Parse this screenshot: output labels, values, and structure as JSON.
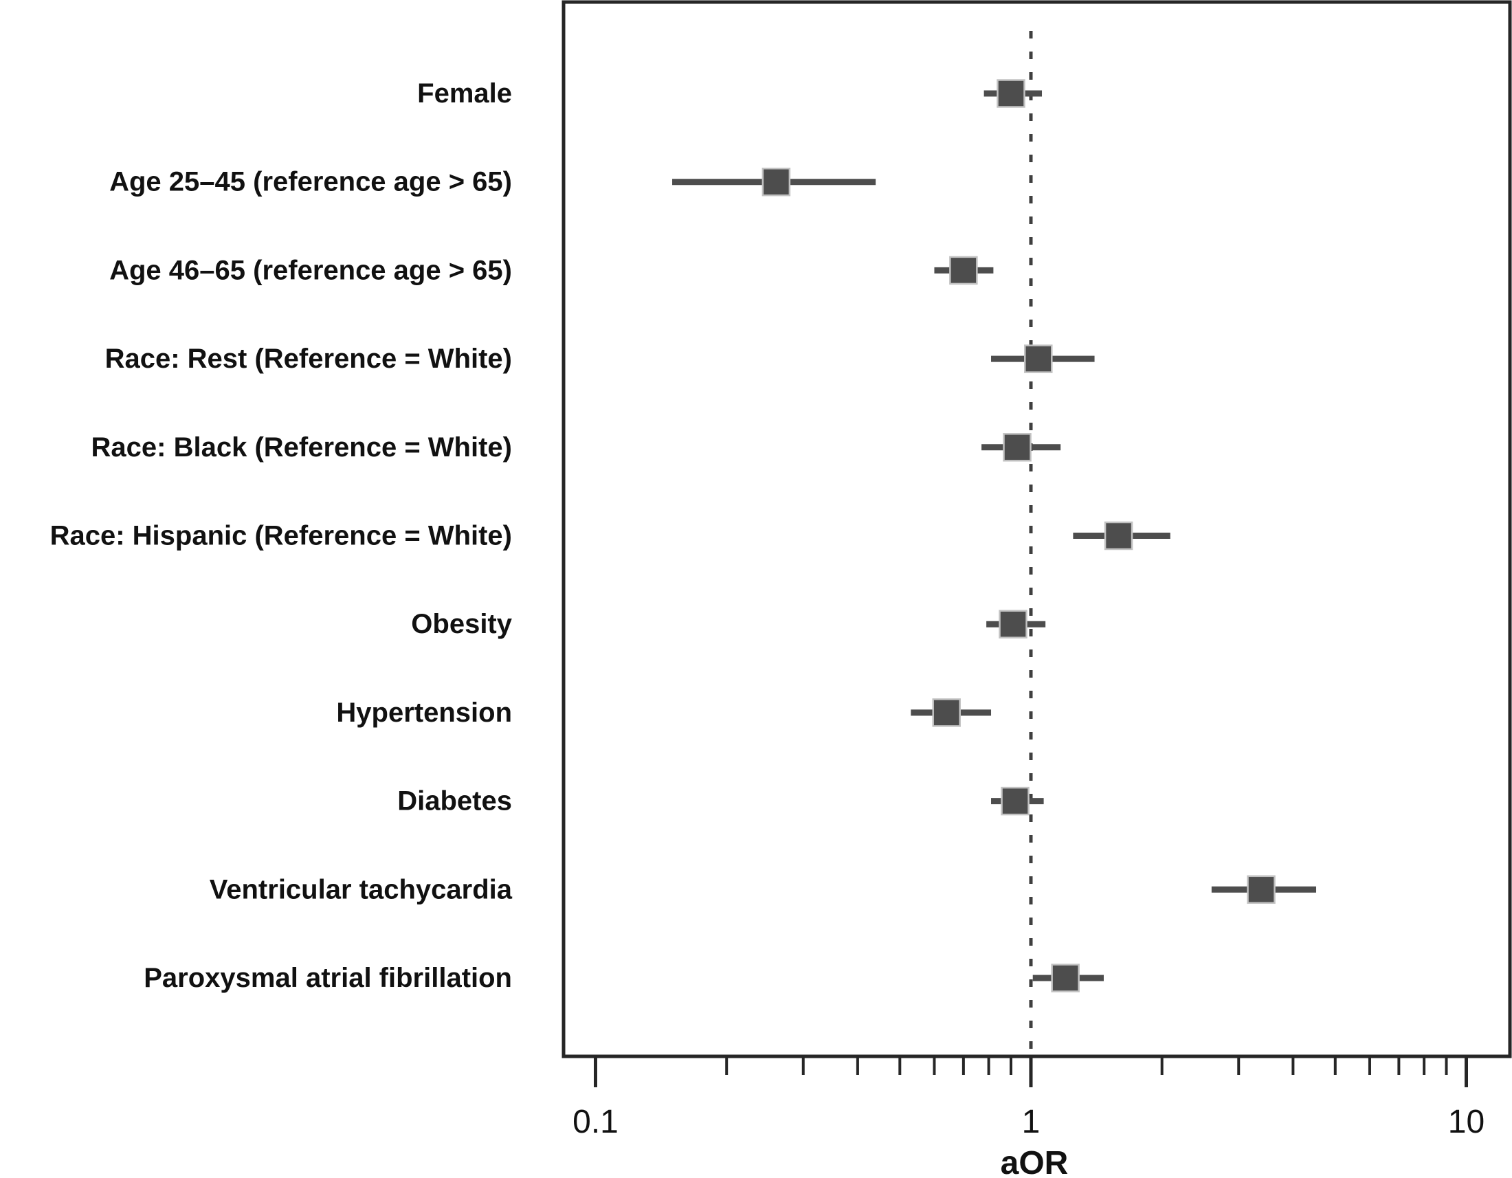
{
  "figure": {
    "xlabel": "aOR",
    "x_tick_labels": [
      "0.1",
      "1",
      "10"
    ]
  },
  "chart_data": {
    "type": "scatter",
    "subtype": "forest-plot",
    "title": "",
    "xlabel": "aOR",
    "ylabel": "",
    "x_scale": "log",
    "x_range": [
      0.085,
      12.6
    ],
    "x_ticks_major": [
      0.1,
      1,
      10
    ],
    "x_tick_labels": [
      "0.1",
      "1",
      "10"
    ],
    "x_ticks_minor": [
      0.2,
      0.3,
      0.4,
      0.5,
      0.6,
      0.7,
      0.8,
      0.9,
      2,
      3,
      4,
      5,
      6,
      7,
      8,
      9
    ],
    "reference_line_x": 1,
    "grid": false,
    "legend": "none",
    "categories": [
      "Female",
      "Age 25–45 (reference age > 65)",
      "Age 46–65 (reference age > 65)",
      "Race: Rest (Reference = White)",
      "Race: Black (Reference = White)",
      "Race: Hispanic (Reference = White)",
      "Obesity",
      "Hypertension",
      "Diabetes",
      "Ventricular tachycardia",
      "Paroxysmal atrial fibrillation"
    ],
    "series": [
      {
        "name": "aOR (95% CI)",
        "values": [
          0.9,
          0.26,
          0.7,
          1.04,
          0.93,
          1.59,
          0.91,
          0.64,
          0.92,
          3.38,
          1.2
        ],
        "ci_low": [
          0.78,
          0.15,
          0.6,
          0.81,
          0.77,
          1.25,
          0.79,
          0.53,
          0.81,
          2.6,
          1.01
        ],
        "ci_high": [
          1.06,
          0.44,
          0.82,
          1.4,
          1.17,
          2.09,
          1.08,
          0.81,
          1.07,
          4.52,
          1.47
        ]
      }
    ]
  },
  "colors": {
    "marker": "#4d4d4d",
    "marker_edge": "#c2c2c2",
    "ci_line": "#4d4d4d",
    "reference_line": "#3f3f3f",
    "axis": "#262626",
    "text": "#111111"
  }
}
